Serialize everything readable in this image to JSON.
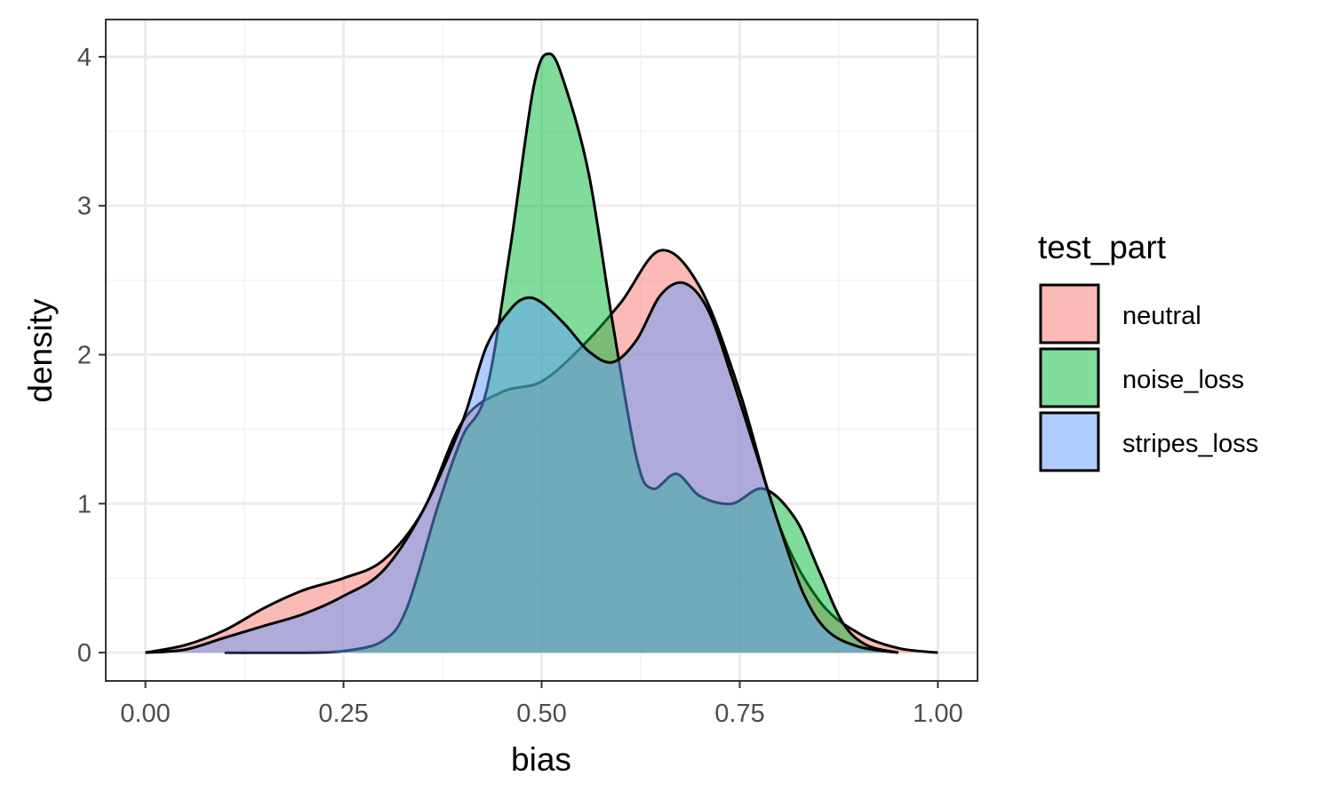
{
  "chart_data": {
    "type": "area",
    "xlabel": "bias",
    "ylabel": "density",
    "xlim": [
      -0.05,
      1.05
    ],
    "ylim": [
      -0.19,
      4.25
    ],
    "x_ticks": [
      0.0,
      0.25,
      0.5,
      0.75,
      1.0
    ],
    "x_tick_labels": [
      "0.00",
      "0.25",
      "0.50",
      "0.75",
      "1.00"
    ],
    "y_ticks": [
      0,
      1,
      2,
      3,
      4
    ],
    "y_tick_labels": [
      "0",
      "1",
      "2",
      "3",
      "4"
    ],
    "grid": true,
    "legend": {
      "title": "test_part",
      "position": "right"
    },
    "series": [
      {
        "name": "neutral",
        "color": "#F8766D",
        "points": [
          [
            0.0,
            0.0
          ],
          [
            0.05,
            0.05
          ],
          [
            0.1,
            0.15
          ],
          [
            0.15,
            0.3
          ],
          [
            0.2,
            0.42
          ],
          [
            0.25,
            0.5
          ],
          [
            0.3,
            0.62
          ],
          [
            0.35,
            0.95
          ],
          [
            0.4,
            1.55
          ],
          [
            0.45,
            1.75
          ],
          [
            0.5,
            1.82
          ],
          [
            0.55,
            2.05
          ],
          [
            0.6,
            2.35
          ],
          [
            0.65,
            2.7
          ],
          [
            0.7,
            2.45
          ],
          [
            0.75,
            1.75
          ],
          [
            0.8,
            0.85
          ],
          [
            0.85,
            0.35
          ],
          [
            0.9,
            0.13
          ],
          [
            0.95,
            0.03
          ],
          [
            1.0,
            0.0
          ]
        ]
      },
      {
        "name": "noise_loss",
        "color": "#00BA38",
        "points": [
          [
            0.1,
            0.0
          ],
          [
            0.2,
            0.0
          ],
          [
            0.25,
            0.01
          ],
          [
            0.3,
            0.08
          ],
          [
            0.33,
            0.3
          ],
          [
            0.37,
            1.0
          ],
          [
            0.4,
            1.45
          ],
          [
            0.43,
            1.75
          ],
          [
            0.46,
            2.7
          ],
          [
            0.49,
            3.8
          ],
          [
            0.51,
            4.02
          ],
          [
            0.53,
            3.8
          ],
          [
            0.56,
            3.2
          ],
          [
            0.59,
            2.2
          ],
          [
            0.62,
            1.3
          ],
          [
            0.64,
            1.1
          ],
          [
            0.67,
            1.2
          ],
          [
            0.7,
            1.05
          ],
          [
            0.74,
            1.0
          ],
          [
            0.78,
            1.1
          ],
          [
            0.82,
            0.9
          ],
          [
            0.85,
            0.55
          ],
          [
            0.88,
            0.2
          ],
          [
            0.91,
            0.05
          ],
          [
            0.95,
            0.0
          ]
        ]
      },
      {
        "name": "stripes_loss",
        "color": "#619CFF",
        "points": [
          [
            0.0,
            0.0
          ],
          [
            0.05,
            0.02
          ],
          [
            0.1,
            0.1
          ],
          [
            0.15,
            0.18
          ],
          [
            0.2,
            0.26
          ],
          [
            0.25,
            0.38
          ],
          [
            0.3,
            0.55
          ],
          [
            0.35,
            0.95
          ],
          [
            0.4,
            1.55
          ],
          [
            0.43,
            2.05
          ],
          [
            0.46,
            2.3
          ],
          [
            0.48,
            2.38
          ],
          [
            0.5,
            2.35
          ],
          [
            0.53,
            2.2
          ],
          [
            0.56,
            2.02
          ],
          [
            0.59,
            1.95
          ],
          [
            0.62,
            2.1
          ],
          [
            0.65,
            2.4
          ],
          [
            0.68,
            2.48
          ],
          [
            0.71,
            2.3
          ],
          [
            0.74,
            1.85
          ],
          [
            0.77,
            1.35
          ],
          [
            0.8,
            0.85
          ],
          [
            0.83,
            0.4
          ],
          [
            0.86,
            0.15
          ],
          [
            0.9,
            0.04
          ],
          [
            0.95,
            0.0
          ]
        ]
      }
    ]
  }
}
